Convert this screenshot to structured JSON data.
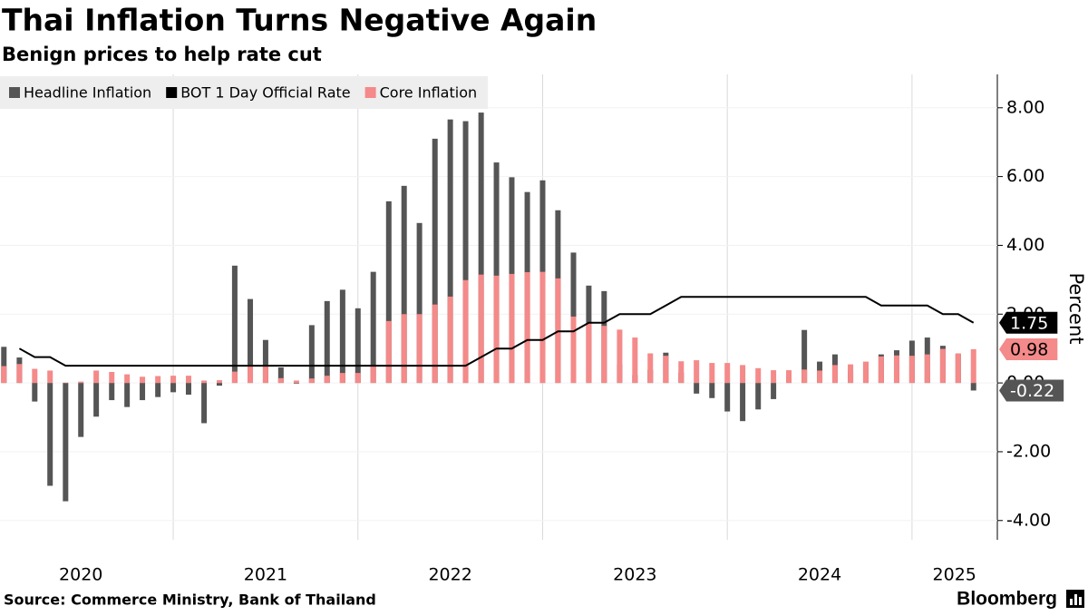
{
  "chart_data": {
    "type": "bar",
    "title": "Thai Inflation Turns Negative Again",
    "subtitle": "Benign prices to help rate cut",
    "y_axis_label": "Percent",
    "source": "Source: Commerce Ministry, Bank of Thailand",
    "brand": "Bloomberg",
    "x": [
      2020.083,
      2020.167,
      2020.25,
      2020.333,
      2020.417,
      2020.5,
      2020.583,
      2020.667,
      2020.75,
      2020.833,
      2020.917,
      2021,
      2021.083,
      2021.167,
      2021.25,
      2021.333,
      2021.417,
      2021.5,
      2021.583,
      2021.667,
      2021.75,
      2021.833,
      2021.917,
      2022,
      2022.083,
      2022.167,
      2022.25,
      2022.333,
      2022.417,
      2022.5,
      2022.583,
      2022.667,
      2022.75,
      2022.833,
      2022.917,
      2023,
      2023.083,
      2023.167,
      2023.25,
      2023.333,
      2023.417,
      2023.5,
      2023.583,
      2023.667,
      2023.75,
      2023.833,
      2023.917,
      2024,
      2024.083,
      2024.167,
      2024.25,
      2024.333,
      2024.417,
      2024.5,
      2024.583,
      2024.667,
      2024.75,
      2024.833,
      2024.917,
      2025,
      2025.083,
      2025.167,
      2025.25,
      2025.333
    ],
    "series": [
      {
        "name": "Headline Inflation",
        "type": "bar",
        "color": "#555555",
        "label_text_color": "#ffffff",
        "values": [
          1.05,
          0.74,
          -0.54,
          -2.99,
          -3.44,
          -1.57,
          -0.98,
          -0.5,
          -0.7,
          -0.5,
          -0.41,
          -0.27,
          -0.34,
          -1.17,
          -0.08,
          3.41,
          2.44,
          1.25,
          0.45,
          -0.02,
          1.68,
          2.38,
          2.71,
          2.17,
          3.23,
          5.28,
          5.73,
          4.65,
          7.1,
          7.66,
          7.61,
          7.86,
          6.41,
          5.98,
          5.55,
          5.89,
          5.02,
          3.79,
          2.83,
          2.67,
          0.53,
          0.23,
          0.38,
          0.88,
          0.3,
          -0.31,
          -0.44,
          -0.83,
          -1.11,
          -0.77,
          -0.47,
          0.19,
          1.54,
          0.62,
          0.83,
          0.35,
          0.61,
          0.83,
          0.95,
          1.23,
          1.32,
          1.08,
          0.84,
          -0.22
        ]
      },
      {
        "name": "BOT 1 Day Official Rate",
        "type": "line",
        "color": "#000000",
        "label_text_color": "#ffffff",
        "values": [
          null,
          1.0,
          0.75,
          0.75,
          0.5,
          0.5,
          0.5,
          0.5,
          0.5,
          0.5,
          0.5,
          0.5,
          0.5,
          0.5,
          0.5,
          0.5,
          0.5,
          0.5,
          0.5,
          0.5,
          0.5,
          0.5,
          0.5,
          0.5,
          0.5,
          0.5,
          0.5,
          0.5,
          0.5,
          0.5,
          0.5,
          0.75,
          1.0,
          1.0,
          1.25,
          1.25,
          1.5,
          1.5,
          1.75,
          1.75,
          2.0,
          2.0,
          2.0,
          2.25,
          2.5,
          2.5,
          2.5,
          2.5,
          2.5,
          2.5,
          2.5,
          2.5,
          2.5,
          2.5,
          2.5,
          2.5,
          2.5,
          2.25,
          2.25,
          2.25,
          2.25,
          2.0,
          2.0,
          1.75
        ]
      },
      {
        "name": "Core Inflation",
        "type": "bar",
        "color": "#f48a89",
        "label_text_color": "#000000",
        "values": [
          0.49,
          0.55,
          0.41,
          0.36,
          0.01,
          0.04,
          0.36,
          0.32,
          0.25,
          0.18,
          0.2,
          0.21,
          0.21,
          0.07,
          0.08,
          0.33,
          0.48,
          0.52,
          0.14,
          0.07,
          0.13,
          0.21,
          0.29,
          0.29,
          0.52,
          1.8,
          2.0,
          2.0,
          2.28,
          2.51,
          2.99,
          3.15,
          3.12,
          3.17,
          3.22,
          3.23,
          3.04,
          1.93,
          1.75,
          1.66,
          1.55,
          1.32,
          0.86,
          0.79,
          0.63,
          0.66,
          0.58,
          0.58,
          0.52,
          0.43,
          0.37,
          0.37,
          0.39,
          0.36,
          0.52,
          0.54,
          0.62,
          0.77,
          0.8,
          0.79,
          0.83,
          0.99,
          0.86,
          0.98
        ]
      }
    ],
    "xlim": [
      2020.062,
      2025.462
    ],
    "xticks": [
      {
        "value": 2020.5,
        "label": "2020"
      },
      {
        "value": 2021.5,
        "label": "2021"
      },
      {
        "value": 2022.5,
        "label": "2022"
      },
      {
        "value": 2023.5,
        "label": "2023"
      },
      {
        "value": 2024.5,
        "label": "2024"
      },
      {
        "value": 2025.23,
        "label": "2025"
      }
    ],
    "xgrid": [
      2021,
      2022,
      2023,
      2024,
      2025
    ],
    "ylim": [
      -4.56,
      8.97
    ],
    "yticks": [
      {
        "value": 8,
        "label": "8.00"
      },
      {
        "value": 6,
        "label": "6.00"
      },
      {
        "value": 4,
        "label": "4.00"
      },
      {
        "value": 2,
        "label": "2.00"
      },
      {
        "value": 0,
        "label": "0.00"
      },
      {
        "value": -2,
        "label": "-2.00"
      },
      {
        "value": -4,
        "label": "-4.00"
      }
    ],
    "y_axis_side": "right",
    "legend_position": "top-left"
  }
}
